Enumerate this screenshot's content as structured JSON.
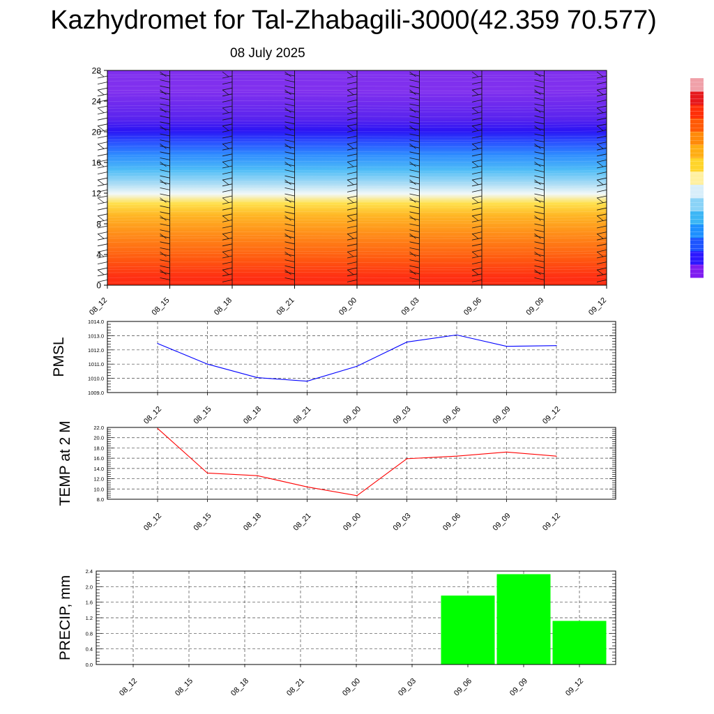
{
  "title": "Kazhydromet for Tal-Zhabagili-3000(42.359 70.577)",
  "date": "08 July 2025",
  "colorbar": {
    "colors": [
      "#7f1cf0",
      "#2c18ff",
      "#1e55ff",
      "#1e90ff",
      "#3cb6f5",
      "#8ad3f7",
      "#d8eefa",
      "#fff0a0",
      "#ffd42a",
      "#ffae14",
      "#ff8a0a",
      "#ff5a06",
      "#ff2f08",
      "#e6191c",
      "#f0a0a8"
    ]
  },
  "chart_data": [
    {
      "type": "heatmap",
      "ylim": [
        0,
        28
      ],
      "yticks": [
        "0",
        "4",
        "8",
        "12",
        "16",
        "20",
        "24",
        "28"
      ],
      "categories": [
        "08_12",
        "08_15",
        "08_18",
        "08_21",
        "09_00",
        "09_03",
        "09_06",
        "09_09",
        "09_12"
      ],
      "bands": [
        {
          "from": 0,
          "to": 2,
          "color": "#ff2e12"
        },
        {
          "from": 2,
          "to": 5,
          "color": "#ff5a10"
        },
        {
          "from": 5,
          "to": 8,
          "color": "#ff8a18"
        },
        {
          "from": 8,
          "to": 10,
          "color": "#ffb423"
        },
        {
          "from": 10,
          "to": 11.3,
          "color": "#ffe04a"
        },
        {
          "from": 11.3,
          "to": 12.5,
          "color": "#f2f8f8"
        },
        {
          "from": 12.5,
          "to": 14,
          "color": "#a9dcf5"
        },
        {
          "from": 14,
          "to": 16,
          "color": "#4fbdf7"
        },
        {
          "from": 16,
          "to": 18,
          "color": "#2e8cff"
        },
        {
          "from": 18,
          "to": 19.2,
          "color": "#2a52ff"
        },
        {
          "from": 19.2,
          "to": 21,
          "color": "#2a14f4"
        },
        {
          "from": 21,
          "to": 22.5,
          "color": "#5a24ee"
        },
        {
          "from": 22.5,
          "to": 28,
          "color": "#8030ee"
        }
      ]
    },
    {
      "type": "line",
      "ylabel": "PMSL",
      "ylim": [
        1009.0,
        1014.0
      ],
      "yticks": [
        "1009.0",
        "1010.0",
        "1011.0",
        "1012.0",
        "1013.0",
        "1014.0"
      ],
      "categories": [
        "08_12",
        "08_15",
        "08_18",
        "08_21",
        "09_00",
        "09_03",
        "09_06",
        "09_09",
        "09_12"
      ],
      "series": [
        {
          "values": [
            1012.45,
            1011.0,
            1010.05,
            1009.8,
            1010.85,
            1012.55,
            1013.05,
            1012.25,
            1012.3
          ],
          "color": "#0000ff"
        }
      ]
    },
    {
      "type": "line",
      "ylabel": "TEMP at 2 M",
      "ylim": [
        8.0,
        22.0
      ],
      "yticks": [
        "8.0",
        "10.0",
        "12.0",
        "14.0",
        "16.0",
        "18.0",
        "20.0",
        "22.0"
      ],
      "categories": [
        "08_12",
        "08_15",
        "08_18",
        "08_21",
        "09_00",
        "09_03",
        "09_06",
        "09_09",
        "09_12"
      ],
      "series": [
        {
          "values": [
            21.8,
            13.1,
            12.6,
            10.4,
            8.7,
            15.9,
            16.4,
            17.2,
            16.4
          ],
          "color": "#ff0000"
        }
      ]
    },
    {
      "type": "bar",
      "ylabel": "PRECIP, mm",
      "ylim": [
        0.0,
        2.4
      ],
      "yticks": [
        "0.0",
        "0.4",
        "0.8",
        "1.2",
        "1.6",
        "2.0",
        "2.4"
      ],
      "categories": [
        "08_12",
        "08_15",
        "08_18",
        "08_21",
        "09_00",
        "09_03",
        "09_06",
        "09_09",
        "09_12"
      ],
      "values": [
        0,
        0,
        0,
        0,
        0,
        0,
        1.77,
        2.32,
        1.12
      ],
      "color": "#00ff00"
    }
  ]
}
